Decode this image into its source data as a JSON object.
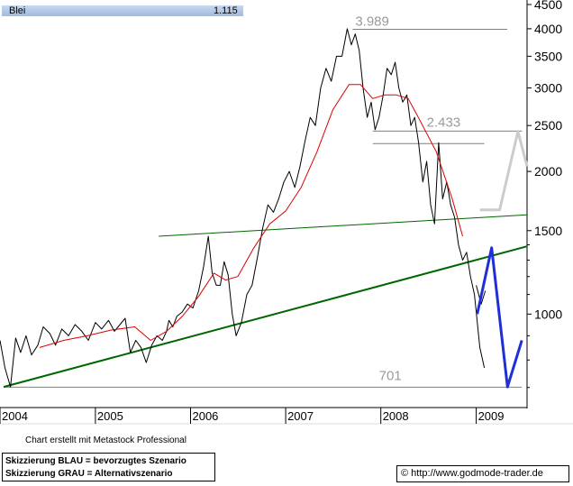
{
  "header": {
    "name": "Blei",
    "value": "1.115"
  },
  "footer": {
    "software_note": "Chart erstellt mit Metastock Professional",
    "legend_blue": "Skizzierung BLAU = bevorzugtes Szenario",
    "legend_grey": "Skizzierung GRAU = Alternativszenario",
    "source": "© http://www.godmode-trader.de"
  },
  "colors": {
    "price": "#000000",
    "moving_average": "#dd0000",
    "trendline": "#006600",
    "scenario_blue": "#1f2fd8",
    "scenario_grey": "#cccccc",
    "level_line": "#808080",
    "axis": "#000000"
  },
  "chart_data": {
    "type": "line",
    "scale": "log",
    "ylim": [
      635,
      4600
    ],
    "xlim": [
      "2004-01-01",
      "2009-07-15"
    ],
    "x_ticks": [
      "2004",
      "2005",
      "2006",
      "2007",
      "2008",
      "2009"
    ],
    "y_ticks": [
      "4500",
      "4000",
      "3500",
      "3000",
      "2500",
      "2000",
      "1500",
      "1000"
    ],
    "y_tick_values": [
      4500,
      4000,
      3500,
      3000,
      2500,
      2000,
      1500,
      1000
    ],
    "annotations": [
      {
        "text": "3.989",
        "value": 3989
      },
      {
        "text": "2.433",
        "value": 2433
      },
      {
        "text": "701",
        "value": 701
      }
    ],
    "level_lines": [
      {
        "value": 3989,
        "from": "2007-09-15",
        "to": "2009-04-30"
      },
      {
        "value": 2433,
        "from": "2007-12-01",
        "to": "2009-06-25"
      },
      {
        "value": 2290,
        "from": "2007-12-01",
        "to": "2009-02-01"
      },
      {
        "value": 701,
        "from": "2004-01-15",
        "to": "2009-06-25"
      }
    ],
    "trendlines": [
      {
        "name": "support",
        "points": [
          [
            "2004-01-15",
            702
          ],
          [
            "2009-07-15",
            1390
          ]
        ]
      },
      {
        "name": "resistance",
        "points": [
          [
            "2005-09-01",
            1460
          ],
          [
            "2009-07-15",
            1620
          ]
        ]
      }
    ],
    "series": [
      {
        "name": "",
        "role": "price",
        "x": [
          "2004-01-01",
          "2004-01-20",
          "2004-02-10",
          "2004-03-01",
          "2004-03-20",
          "2004-04-10",
          "2004-05-01",
          "2004-05-25",
          "2004-06-15",
          "2004-07-10",
          "2004-08-01",
          "2004-08-25",
          "2004-09-20",
          "2004-10-15",
          "2004-11-10",
          "2004-12-05",
          "2005-01-01",
          "2005-01-25",
          "2005-02-20",
          "2005-03-15",
          "2005-04-05",
          "2005-04-25",
          "2005-05-15",
          "2005-06-05",
          "2005-06-25",
          "2005-07-15",
          "2005-08-05",
          "2005-08-25",
          "2005-09-15",
          "2005-10-01",
          "2005-10-10",
          "2005-10-25",
          "2005-11-10",
          "2005-11-30",
          "2005-12-20",
          "2006-01-10",
          "2006-02-01",
          "2006-02-20",
          "2006-03-10",
          "2006-03-25",
          "2006-04-10",
          "2006-04-25",
          "2006-05-10",
          "2006-05-25",
          "2006-06-10",
          "2006-06-25",
          "2006-07-15",
          "2006-08-05",
          "2006-08-25",
          "2006-09-15",
          "2006-10-05",
          "2006-10-25",
          "2006-11-15",
          "2006-12-05",
          "2006-12-25",
          "2007-01-15",
          "2007-02-05",
          "2007-02-25",
          "2007-03-15",
          "2007-04-05",
          "2007-04-25",
          "2007-05-15",
          "2007-06-05",
          "2007-06-25",
          "2007-07-15",
          "2007-08-05",
          "2007-08-25",
          "2007-09-10",
          "2007-09-25",
          "2007-10-10",
          "2007-10-25",
          "2007-11-10",
          "2007-11-25",
          "2007-12-10",
          "2007-12-25",
          "2008-01-10",
          "2008-01-25",
          "2008-02-10",
          "2008-02-25",
          "2008-03-10",
          "2008-03-25",
          "2008-04-10",
          "2008-04-25",
          "2008-05-10",
          "2008-05-25",
          "2008-06-10",
          "2008-06-25",
          "2008-07-10",
          "2008-07-25",
          "2008-08-10",
          "2008-08-25",
          "2008-09-10",
          "2008-09-25",
          "2008-10-10",
          "2008-10-25",
          "2008-11-10",
          "2008-11-25",
          "2008-12-10",
          "2008-12-25",
          "2009-01-15",
          "2009-02-01"
        ],
        "values": [
          880,
          770,
          702,
          890,
          830,
          900,
          820,
          860,
          940,
          910,
          860,
          930,
          900,
          950,
          920,
          880,
          960,
          930,
          970,
          920,
          950,
          980,
          830,
          880,
          850,
          790,
          860,
          900,
          880,
          920,
          970,
          940,
          990,
          1010,
          1050,
          1030,
          1120,
          1260,
          1460,
          1220,
          1150,
          1150,
          1290,
          1210,
          1000,
          900,
          960,
          1100,
          1150,
          1320,
          1520,
          1700,
          1640,
          1750,
          1900,
          2000,
          1850,
          2050,
          2300,
          2600,
          2500,
          3000,
          3300,
          3100,
          3500,
          3500,
          4000,
          3700,
          3900,
          3600,
          3000,
          2600,
          2800,
          2450,
          2600,
          2900,
          3300,
          3200,
          3400,
          3000,
          2800,
          2900,
          2500,
          2600,
          2300,
          1900,
          2100,
          1700,
          1550,
          2300,
          1750,
          1900,
          1700,
          1600,
          1400,
          1300,
          1350,
          1200,
          1100,
          850,
          770
        ]
      },
      {
        "name": "",
        "role": "moving_average",
        "x": [
          "2004-06-01",
          "2004-09-01",
          "2004-12-01",
          "2005-03-01",
          "2005-06-01",
          "2005-08-01",
          "2005-10-01",
          "2005-12-01",
          "2006-02-01",
          "2006-04-01",
          "2006-05-15",
          "2006-07-01",
          "2006-09-01",
          "2006-11-01",
          "2007-01-01",
          "2007-03-01",
          "2007-05-01",
          "2007-07-01",
          "2007-09-01",
          "2007-10-15",
          "2007-12-01",
          "2008-01-15",
          "2008-03-01",
          "2008-04-15",
          "2008-06-01",
          "2008-08-01",
          "2008-10-01",
          "2008-11-10"
        ],
        "values": [
          850,
          880,
          900,
          925,
          940,
          880,
          920,
          990,
          1090,
          1220,
          1180,
          1200,
          1380,
          1550,
          1650,
          1850,
          2200,
          2700,
          3050,
          3050,
          2850,
          2900,
          2900,
          2850,
          2550,
          2200,
          1750,
          1460
        ]
      },
      {
        "name": "",
        "role": "price",
        "x": [
          "2009-01-01",
          "2009-01-20",
          "2009-02-05"
        ],
        "values": [
          1150,
          1050,
          1120
        ]
      },
      {
        "name": "",
        "role": "scenario_blue",
        "x": [
          "2009-01-05",
          "2009-03-01",
          "2009-05-01",
          "2009-06-25"
        ],
        "values": [
          1000,
          1380,
          702,
          880
        ]
      },
      {
        "name": "",
        "role": "scenario_grey",
        "x": [
          "2009-01-15",
          "2009-04-01",
          "2009-06-10",
          "2009-07-15"
        ],
        "values": [
          1660,
          1660,
          2430,
          2050
        ]
      }
    ]
  }
}
